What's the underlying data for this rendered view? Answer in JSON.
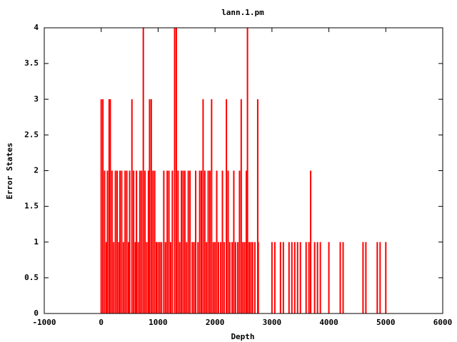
{
  "chart_data": {
    "type": "impulse",
    "title": "lann.1.pm",
    "x_label": "Depth",
    "y_label": "Error States",
    "series": [
      {
        "name": "lann.1.pm",
        "color": "#ff0000",
        "x": [
          0,
          30,
          60,
          90,
          110,
          140,
          160,
          190,
          220,
          250,
          280,
          310,
          330,
          360,
          390,
          420,
          450,
          480,
          500,
          540,
          570,
          600,
          620,
          650,
          680,
          710,
          740,
          770,
          800,
          830,
          850,
          880,
          910,
          940,
          970,
          1000,
          1030,
          1060,
          1100,
          1130,
          1160,
          1190,
          1220,
          1250,
          1290,
          1320,
          1350,
          1380,
          1410,
          1440,
          1470,
          1500,
          1530,
          1560,
          1600,
          1630,
          1660,
          1700,
          1730,
          1760,
          1790,
          1820,
          1850,
          1880,
          1910,
          1940,
          1970,
          2000,
          2030,
          2060,
          2100,
          2130,
          2160,
          2200,
          2230,
          2260,
          2300,
          2330,
          2360,
          2400,
          2430,
          2460,
          2490,
          2520,
          2550,
          2570,
          2600,
          2630,
          2660,
          2700,
          2750,
          2760,
          3000,
          3050,
          3150,
          3200,
          3300,
          3350,
          3400,
          3450,
          3500,
          3600,
          3650,
          3680,
          3750,
          3800,
          3850,
          4000,
          4200,
          4250,
          4600,
          4650,
          4850,
          4900,
          5000
        ],
        "values": [
          3,
          3,
          2,
          1,
          2,
          3,
          3,
          2,
          1,
          2,
          2,
          1,
          2,
          2,
          1,
          2,
          2,
          1,
          2,
          3,
          2,
          1,
          2,
          1,
          2,
          2,
          4,
          2,
          1,
          2,
          3,
          3,
          2,
          2,
          1,
          1,
          1,
          1,
          2,
          1,
          2,
          2,
          1,
          2,
          4,
          4,
          2,
          1,
          2,
          2,
          2,
          1,
          2,
          2,
          1,
          1,
          2,
          1,
          2,
          2,
          3,
          2,
          1,
          2,
          2,
          3,
          1,
          1,
          2,
          1,
          1,
          2,
          1,
          3,
          2,
          1,
          1,
          2,
          1,
          1,
          2,
          3,
          1,
          1,
          2,
          4,
          1,
          1,
          1,
          1,
          3,
          1,
          1,
          1,
          1,
          1,
          1,
          1,
          1,
          1,
          1,
          1,
          1,
          2,
          1,
          1,
          1,
          1,
          1,
          1,
          1,
          1,
          1,
          1,
          1
        ]
      }
    ],
    "xlim": [
      -1000,
      6000
    ],
    "xticks": [
      -1000,
      0,
      1000,
      2000,
      3000,
      4000,
      5000,
      6000
    ],
    "ylim": [
      0,
      4
    ],
    "yticks": [
      0,
      0.5,
      1,
      1.5,
      2,
      2.5,
      3,
      3.5,
      4
    ],
    "grid": false
  }
}
